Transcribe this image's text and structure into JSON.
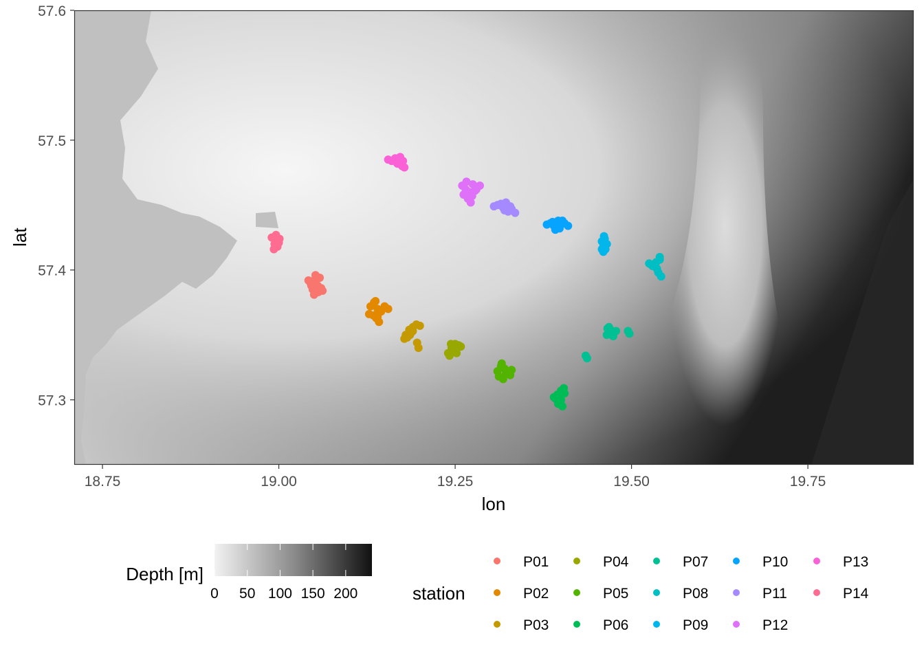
{
  "chart_data": {
    "type": "scatter",
    "xlabel": "lon",
    "ylabel": "lat",
    "xlim": [
      18.71,
      19.9
    ],
    "ylim": [
      57.25,
      57.6
    ],
    "x_ticks": [
      18.75,
      19.0,
      19.25,
      19.5,
      19.75
    ],
    "x_tick_labels": [
      "18.75",
      "19.00",
      "19.25",
      "19.50",
      "19.75"
    ],
    "y_ticks": [
      57.3,
      57.4,
      57.5,
      57.6
    ],
    "y_tick_labels": [
      "57.3",
      "57.4",
      "57.5",
      "57.6"
    ],
    "grid": false,
    "background": "bathymetry raster (greyscale), land shown in grey",
    "fill_legend": {
      "title": "Depth [m]",
      "range": [
        0,
        240
      ],
      "colors": [
        "#f2f2f2",
        "#111111"
      ],
      "ticks": [
        0,
        50,
        100,
        150,
        200
      ],
      "tick_labels": [
        "0",
        "50",
        "100",
        "150",
        "200"
      ]
    },
    "color_legend": {
      "title": "station",
      "placement": "bottom"
    },
    "series": [
      {
        "name": "P01",
        "color": "#F8766D",
        "x": [
          19.045,
          19.05,
          19.055,
          19.06,
          19.048,
          19.058,
          19.052,
          19.042,
          19.056,
          19.05,
          19.062,
          19.046
        ],
        "y": [
          57.39,
          57.392,
          57.388,
          57.386,
          57.385,
          57.394,
          57.396,
          57.392,
          57.383,
          57.381,
          57.384,
          57.388
        ]
      },
      {
        "name": "P02",
        "color": "#E38900",
        "x": [
          19.13,
          19.135,
          19.14,
          19.145,
          19.128,
          19.138,
          19.142,
          19.15,
          19.155,
          19.134,
          19.137,
          19.14
        ],
        "y": [
          57.372,
          57.375,
          57.37,
          57.368,
          57.366,
          57.363,
          57.36,
          57.372,
          57.37,
          57.365,
          57.376,
          57.364
        ]
      },
      {
        "name": "P03",
        "color": "#C49A00",
        "x": [
          19.18,
          19.185,
          19.19,
          19.195,
          19.2,
          19.178,
          19.188,
          19.182,
          19.196,
          19.198,
          19.19,
          19.186
        ],
        "y": [
          57.35,
          57.354,
          57.356,
          57.358,
          57.357,
          57.347,
          57.352,
          57.348,
          57.344,
          57.34,
          57.353,
          57.35
        ]
      },
      {
        "name": "P04",
        "color": "#99A800",
        "x": [
          19.24,
          19.245,
          19.25,
          19.255,
          19.242,
          19.248,
          19.252,
          19.258,
          19.244,
          19.25
        ],
        "y": [
          57.336,
          57.34,
          57.343,
          57.342,
          57.334,
          57.338,
          57.336,
          57.341,
          57.343,
          57.338
        ]
      },
      {
        "name": "P05",
        "color": "#53B400",
        "x": [
          19.31,
          19.315,
          19.32,
          19.325,
          19.33,
          19.312,
          19.318,
          19.322,
          19.316,
          19.328
        ],
        "y": [
          57.322,
          57.326,
          57.324,
          57.322,
          57.323,
          57.318,
          57.316,
          57.32,
          57.328,
          57.319
        ]
      },
      {
        "name": "P06",
        "color": "#00BC56",
        "x": [
          19.39,
          19.395,
          19.4,
          19.405,
          19.398,
          19.402,
          19.392,
          19.4,
          19.404,
          19.396
        ],
        "y": [
          57.302,
          57.304,
          57.3,
          57.305,
          57.298,
          57.295,
          57.301,
          57.307,
          57.309,
          57.297
        ]
      },
      {
        "name": "P07",
        "color": "#00C094",
        "x": [
          19.465,
          19.47,
          19.475,
          19.468,
          19.472,
          19.478,
          19.495,
          19.497,
          19.435,
          19.437,
          19.466,
          19.474
        ],
        "y": [
          57.35,
          57.354,
          57.352,
          57.356,
          57.351,
          57.353,
          57.353,
          57.351,
          57.334,
          57.332,
          57.355,
          57.349
        ]
      },
      {
        "name": "P08",
        "color": "#00BFC4",
        "x": [
          19.525,
          19.53,
          19.535,
          19.54,
          19.538,
          19.542,
          19.536,
          19.54,
          19.528
        ],
        "y": [
          57.405,
          57.403,
          57.406,
          57.408,
          57.398,
          57.395,
          57.401,
          57.41,
          57.404
        ]
      },
      {
        "name": "P09",
        "color": "#00B6EB",
        "x": [
          19.458,
          19.46,
          19.462,
          19.465,
          19.458,
          19.46,
          19.463,
          19.461
        ],
        "y": [
          57.422,
          57.418,
          57.424,
          57.42,
          57.416,
          57.414,
          57.416,
          57.426
        ]
      },
      {
        "name": "P10",
        "color": "#06A4FF",
        "x": [
          19.38,
          19.385,
          19.39,
          19.395,
          19.4,
          19.405,
          19.41,
          19.392,
          19.398,
          19.388,
          19.402,
          19.396
        ],
        "y": [
          57.435,
          57.436,
          57.434,
          57.433,
          57.435,
          57.436,
          57.434,
          57.431,
          57.432,
          57.437,
          57.438,
          57.438
        ]
      },
      {
        "name": "P11",
        "color": "#A58AFF",
        "x": [
          19.305,
          19.31,
          19.318,
          19.322,
          19.325,
          19.33,
          19.335,
          19.32,
          19.328,
          19.315
        ],
        "y": [
          57.449,
          57.45,
          57.448,
          57.452,
          57.445,
          57.447,
          57.444,
          57.446,
          57.449,
          57.451
        ]
      },
      {
        "name": "P12",
        "color": "#DF70F8",
        "x": [
          19.26,
          19.265,
          19.27,
          19.275,
          19.28,
          19.285,
          19.262,
          19.268,
          19.272,
          19.278,
          19.266,
          19.274
        ],
        "y": [
          57.465,
          57.462,
          57.46,
          57.466,
          57.462,
          57.465,
          57.458,
          57.455,
          57.452,
          57.461,
          57.468,
          57.457
        ]
      },
      {
        "name": "P13",
        "color": "#FB61D7",
        "x": [
          19.155,
          19.16,
          19.165,
          19.17,
          19.175,
          19.178,
          19.172,
          19.168,
          19.176
        ],
        "y": [
          57.485,
          57.484,
          57.486,
          57.482,
          57.48,
          57.479,
          57.487,
          57.482,
          57.484
        ]
      },
      {
        "name": "P14",
        "color": "#FF6C91",
        "x": [
          18.99,
          18.995,
          19.0,
          18.998,
          18.993,
          18.996,
          19.001,
          18.994
        ],
        "y": [
          57.425,
          57.423,
          57.421,
          57.418,
          57.416,
          57.427,
          57.424,
          57.42
        ]
      }
    ]
  }
}
